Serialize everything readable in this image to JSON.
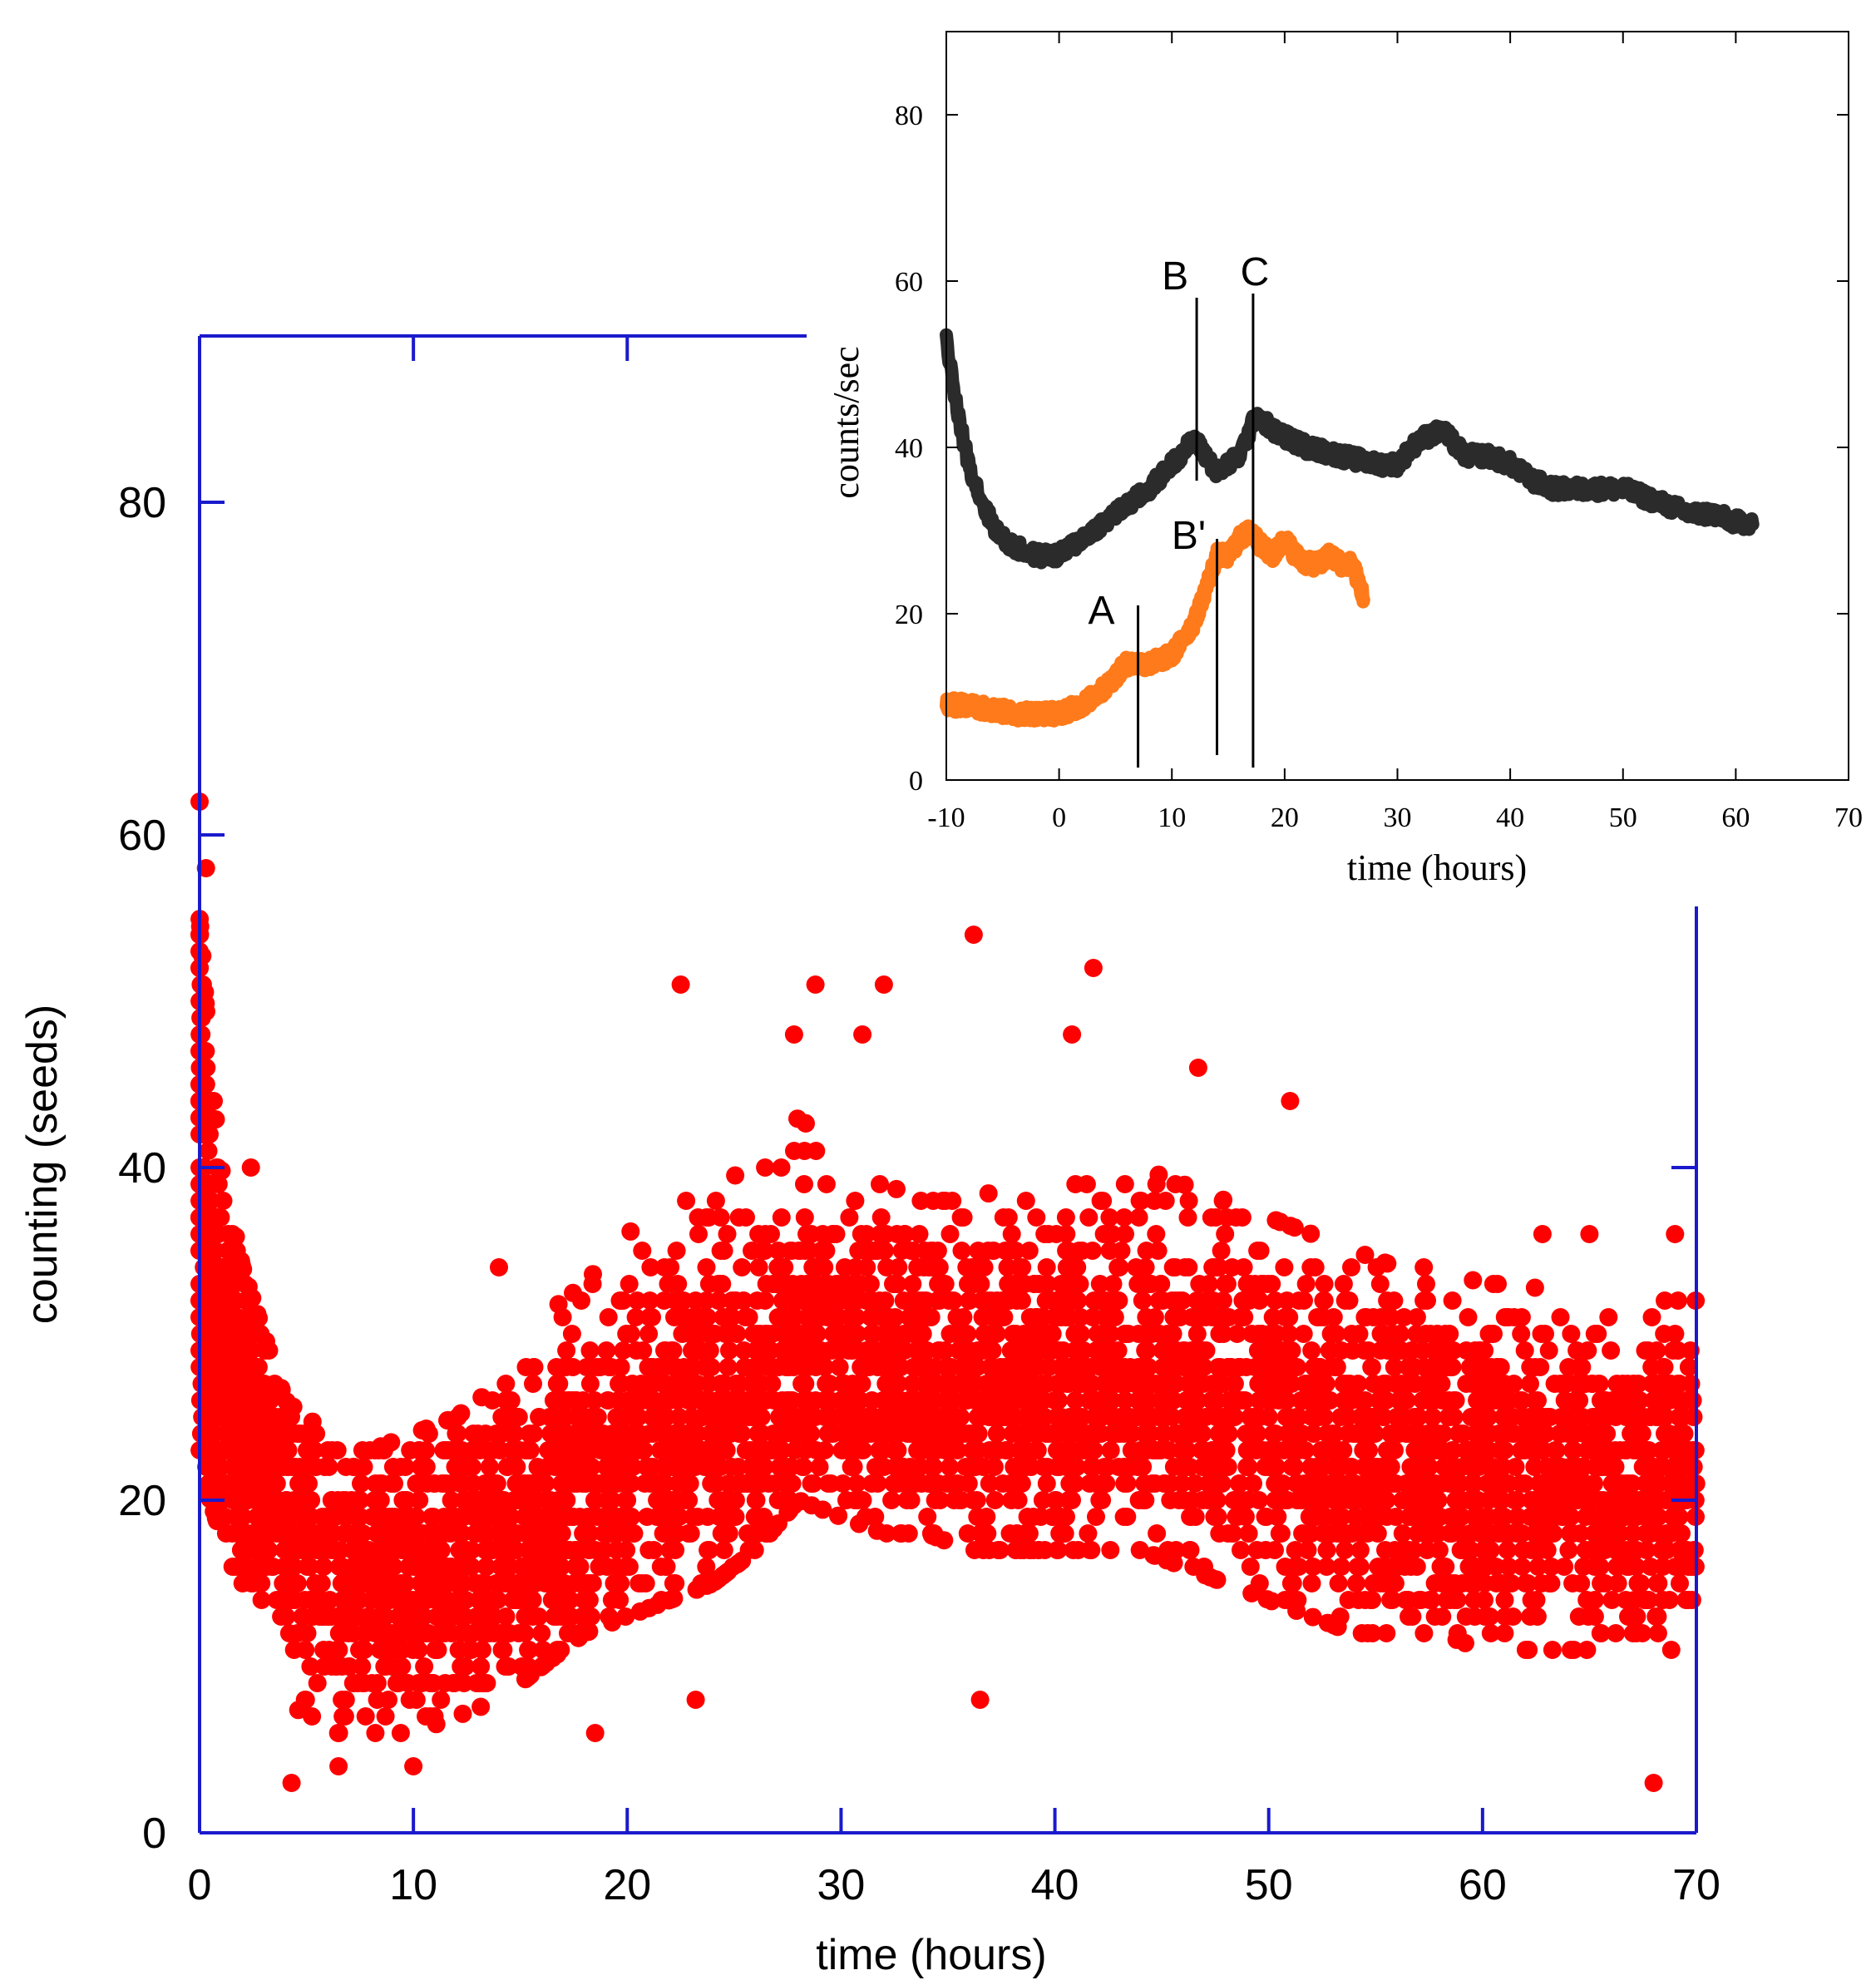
{
  "colors": {
    "main_axes": "#1a1acc",
    "main_points": "#ff0000",
    "inset_axes": "#000000",
    "inset_black_series": "#2b2b2b",
    "inset_orange_series": "#ff7a1a",
    "marker_lines": "#000000"
  },
  "chart_data": [
    {
      "id": "main",
      "type": "scatter",
      "title": "",
      "xlabel": "time (hours)",
      "ylabel": "counting (seeds)",
      "xlim": [
        0,
        70
      ],
      "ylim": [
        0,
        90
      ],
      "xticks": [
        "0",
        "10",
        "20",
        "30",
        "40",
        "50",
        "60",
        "70"
      ],
      "yticks": [
        "0",
        "20",
        "40",
        "60",
        "80"
      ],
      "series": [
        {
          "name": "seed counts",
          "color": "#ff0000",
          "envelope_x": [
            0,
            0.5,
            1,
            2,
            3,
            4,
            5,
            6,
            8,
            10,
            12,
            14,
            16,
            18,
            20,
            22,
            24,
            26,
            28,
            30,
            32,
            34,
            36,
            38,
            40,
            42,
            44,
            46,
            48,
            50,
            52,
            54,
            56,
            58,
            60,
            62,
            64,
            66,
            68,
            70
          ],
          "envelope_mean": [
            40,
            32,
            29,
            25,
            22,
            19,
            17,
            16,
            15,
            15,
            16,
            17,
            19,
            21,
            23,
            24,
            25,
            26,
            30,
            29,
            28,
            27,
            27,
            27,
            27,
            27,
            27,
            27,
            26,
            25,
            24,
            23,
            23,
            22,
            22,
            22,
            21,
            21,
            21,
            21
          ],
          "envelope_low": [
            22,
            20,
            18,
            14,
            11,
            8,
            7,
            6,
            6,
            6,
            7,
            8,
            10,
            12,
            13,
            14,
            15,
            17,
            20,
            19,
            18,
            18,
            17,
            17,
            17,
            17,
            17,
            16,
            15,
            14,
            13,
            12,
            12,
            12,
            11,
            11,
            11,
            11,
            11,
            11
          ],
          "envelope_high": [
            55,
            46,
            40,
            34,
            30,
            26,
            25,
            24,
            23,
            24,
            25,
            27,
            31,
            33,
            36,
            38,
            39,
            40,
            43,
            41,
            39,
            38,
            38,
            39,
            40,
            40,
            40,
            39,
            38,
            37,
            36,
            35,
            34,
            34,
            33,
            33,
            32,
            32,
            32,
            32
          ],
          "outliers": [
            [
              0,
              62
            ],
            [
              0.3,
              58
            ],
            [
              22.5,
              51
            ],
            [
              28.8,
              51
            ],
            [
              32,
              51
            ],
            [
              36.2,
              54
            ],
            [
              41.8,
              52
            ],
            [
              27.8,
              48
            ],
            [
              31,
              48
            ],
            [
              40.8,
              48
            ],
            [
              46.7,
              46
            ],
            [
              51,
              44
            ],
            [
              4.3,
              3
            ],
            [
              68,
              3
            ],
            [
              6.5,
              4
            ],
            [
              10,
              4
            ],
            [
              2.4,
              40
            ],
            [
              14,
              34
            ],
            [
              62.8,
              36
            ],
            [
              65,
              36
            ],
            [
              69,
              36
            ],
            [
              18.5,
              6
            ],
            [
              23.2,
              8
            ],
            [
              36.5,
              8
            ]
          ]
        }
      ]
    },
    {
      "id": "inset",
      "type": "line",
      "title": "",
      "xlabel": "time (hours)",
      "ylabel": "counts/sec",
      "xlim": [
        -10,
        70
      ],
      "ylim": [
        0,
        90
      ],
      "xticks": [
        "-10",
        "0",
        "10",
        "20",
        "30",
        "40",
        "50",
        "60",
        "70"
      ],
      "yticks": [
        "0",
        "20",
        "40",
        "60",
        "80"
      ],
      "series": [
        {
          "name": "black series",
          "color": "#2b2b2b",
          "x": [
            -10,
            -9,
            -8,
            -7,
            -6,
            -5,
            -4,
            -2,
            0,
            2,
            4,
            6,
            8,
            10,
            12,
            14,
            16,
            17.5,
            19,
            22,
            25,
            28,
            30,
            32,
            34,
            36,
            38,
            40,
            42,
            44,
            46,
            48,
            50,
            52,
            54,
            56,
            58,
            60,
            61.5
          ],
          "y": [
            53,
            44,
            38,
            34,
            31,
            29,
            28,
            27,
            27,
            29,
            31,
            33,
            35,
            38,
            41,
            37,
            39,
            44,
            42,
            40,
            39,
            38,
            38,
            41,
            42,
            39,
            39,
            38,
            36,
            35,
            35,
            35,
            35,
            34,
            33,
            32,
            32,
            31,
            31
          ]
        },
        {
          "name": "orange series",
          "color": "#ff7a1a",
          "x": [
            -10,
            -8,
            -6,
            -4,
            -2,
            0,
            2,
            4,
            6,
            8,
            10,
            12,
            13,
            14,
            15,
            16,
            17,
            18,
            19,
            20,
            21,
            22,
            23,
            24,
            25,
            26,
            27
          ],
          "y": [
            9,
            9,
            8.5,
            8,
            8,
            8,
            9,
            11,
            14,
            14,
            15,
            19,
            23,
            27,
            27,
            29,
            30,
            28,
            27,
            29,
            27,
            26,
            26,
            27,
            26,
            26,
            22
          ]
        }
      ],
      "annotations": [
        {
          "label": "A",
          "x": 7,
          "line_from": 1.5,
          "line_to": 21
        },
        {
          "label": "B",
          "x": 12.2,
          "line_from": 36,
          "line_to": 58
        },
        {
          "label": "B'",
          "x": 14,
          "line_from": 3,
          "line_to": 29
        },
        {
          "label": "C",
          "x": 17.2,
          "line_from": 1.5,
          "line_to": 58.5
        }
      ]
    }
  ]
}
